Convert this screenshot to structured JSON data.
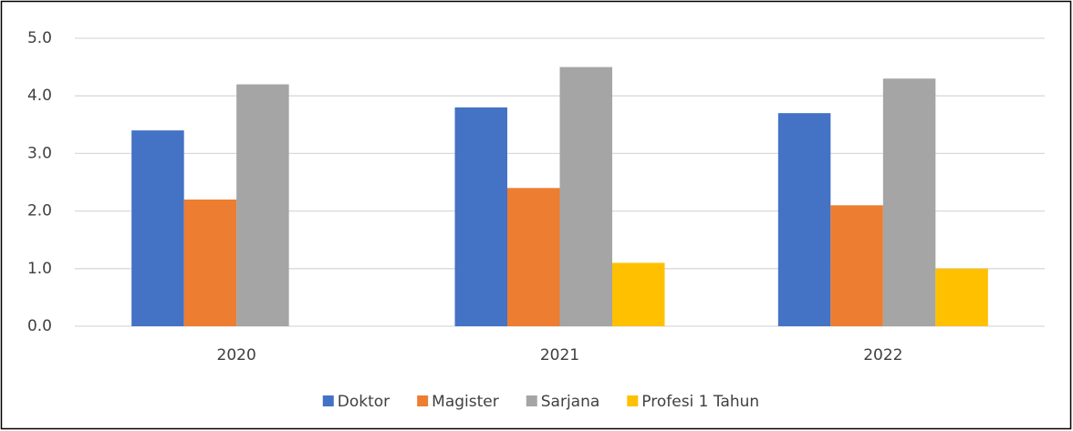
{
  "chart_data": {
    "type": "bar",
    "categories": [
      "2020",
      "2021",
      "2022"
    ],
    "series": [
      {
        "name": "Doktor",
        "color": "#4472c4",
        "values": [
          3.4,
          3.8,
          3.7
        ]
      },
      {
        "name": "Magister",
        "color": "#ed7d31",
        "values": [
          2.2,
          2.4,
          2.1
        ]
      },
      {
        "name": "Sarjana",
        "color": "#a5a5a5",
        "values": [
          4.2,
          4.5,
          4.3
        ]
      },
      {
        "name": "Profesi 1 Tahun",
        "color": "#ffc000",
        "values": [
          null,
          1.1,
          1.0
        ]
      }
    ],
    "ylim": [
      0,
      5
    ],
    "yticks": [
      {
        "value": 0,
        "label": "0.0"
      },
      {
        "value": 1,
        "label": "1.0"
      },
      {
        "value": 2,
        "label": "2.0"
      },
      {
        "value": 3,
        "label": "3.0"
      },
      {
        "value": 4,
        "label": "4.0"
      },
      {
        "value": 5,
        "label": "5.0"
      }
    ],
    "grid": true,
    "legend": "bottom"
  }
}
